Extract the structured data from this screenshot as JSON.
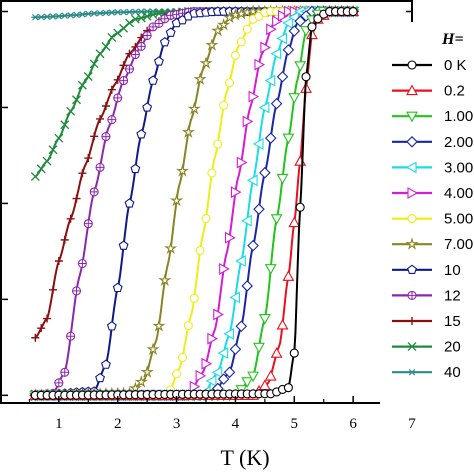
{
  "chart_data": {
    "type": "line",
    "title": "",
    "xlabel": "T (K)",
    "ylabel": "",
    "xlim": [
      0.0,
      7.0
    ],
    "ylim": [
      -0.02,
      1.03
    ],
    "x_ticks": [
      1,
      2,
      3,
      4,
      5,
      6,
      7
    ],
    "x_tick_labels": [
      "1",
      "2",
      "3",
      "4",
      "5",
      "6",
      "7"
    ],
    "legend_title": "H=",
    "legend_position": "right",
    "series": [
      {
        "name": "0 K",
        "color": "#000000",
        "marker": "circle",
        "points": [
          [
            0.6,
            0.0
          ],
          [
            4.6,
            0.004
          ],
          [
            4.9,
            0.02
          ],
          [
            5.0,
            0.11
          ],
          [
            5.1,
            0.49
          ],
          [
            5.2,
            0.83
          ],
          [
            5.3,
            0.96
          ],
          [
            5.45,
            0.99
          ],
          [
            5.6,
            1.0
          ],
          [
            6.0,
            1.0
          ]
        ]
      },
      {
        "name": "0.2",
        "color": "#e8101c",
        "marker": "triangle-up",
        "points": [
          [
            0.6,
            0.0
          ],
          [
            4.3,
            0.0
          ],
          [
            4.55,
            0.03
          ],
          [
            4.75,
            0.13
          ],
          [
            4.9,
            0.31
          ],
          [
            5.0,
            0.45
          ],
          [
            5.1,
            0.61
          ],
          [
            5.2,
            0.8
          ],
          [
            5.3,
            0.94
          ],
          [
            5.4,
            0.98
          ],
          [
            5.6,
            1.0
          ],
          [
            6.0,
            1.0
          ]
        ]
      },
      {
        "name": "1.00",
        "color": "#22c41c",
        "marker": "triangle-down",
        "points": [
          [
            0.6,
            0.0
          ],
          [
            4.0,
            0.0
          ],
          [
            4.3,
            0.05
          ],
          [
            4.5,
            0.2
          ],
          [
            4.7,
            0.46
          ],
          [
            4.9,
            0.67
          ],
          [
            5.05,
            0.82
          ],
          [
            5.2,
            0.95
          ],
          [
            5.35,
            0.99
          ],
          [
            5.5,
            1.0
          ],
          [
            6.0,
            1.0
          ]
        ]
      },
      {
        "name": "2.00",
        "color": "#1a26a8",
        "marker": "diamond",
        "points": [
          [
            0.6,
            0.0
          ],
          [
            3.6,
            0.0
          ],
          [
            3.9,
            0.06
          ],
          [
            4.1,
            0.18
          ],
          [
            4.3,
            0.39
          ],
          [
            4.5,
            0.58
          ],
          [
            4.7,
            0.76
          ],
          [
            4.9,
            0.9
          ],
          [
            5.05,
            0.97
          ],
          [
            5.3,
            1.0
          ],
          [
            6.0,
            1.0
          ]
        ]
      },
      {
        "name": "3.00",
        "color": "#18dde6",
        "marker": "triangle-left",
        "points": [
          [
            0.6,
            0.0
          ],
          [
            3.45,
            0.0
          ],
          [
            3.7,
            0.06
          ],
          [
            3.9,
            0.16
          ],
          [
            4.1,
            0.35
          ],
          [
            4.3,
            0.56
          ],
          [
            4.5,
            0.75
          ],
          [
            4.7,
            0.89
          ],
          [
            4.9,
            0.97
          ],
          [
            5.1,
            1.0
          ],
          [
            6.0,
            1.0
          ]
        ]
      },
      {
        "name": "4.00",
        "color": "#d21cd6",
        "marker": "triangle-right",
        "points": [
          [
            0.6,
            0.0
          ],
          [
            3.2,
            0.0
          ],
          [
            3.45,
            0.06
          ],
          [
            3.65,
            0.17
          ],
          [
            3.85,
            0.37
          ],
          [
            4.05,
            0.57
          ],
          [
            4.25,
            0.75
          ],
          [
            4.45,
            0.89
          ],
          [
            4.65,
            0.97
          ],
          [
            4.9,
            1.0
          ],
          [
            6.0,
            1.0
          ]
        ]
      },
      {
        "name": "5.00",
        "color": "#f0ec1a",
        "marker": "circle",
        "points": [
          [
            0.6,
            0.0
          ],
          [
            2.85,
            0.0
          ],
          [
            3.05,
            0.07
          ],
          [
            3.25,
            0.21
          ],
          [
            3.45,
            0.42
          ],
          [
            3.65,
            0.62
          ],
          [
            3.85,
            0.79
          ],
          [
            4.05,
            0.91
          ],
          [
            4.3,
            0.98
          ],
          [
            4.55,
            1.0
          ],
          [
            6.0,
            1.0
          ]
        ]
      },
      {
        "name": "7.00",
        "color": "#8a8426",
        "marker": "star",
        "points": [
          [
            0.6,
            0.0
          ],
          [
            2.2,
            0.005
          ],
          [
            2.45,
            0.04
          ],
          [
            2.65,
            0.14
          ],
          [
            2.85,
            0.34
          ],
          [
            3.05,
            0.55
          ],
          [
            3.25,
            0.72
          ],
          [
            3.45,
            0.85
          ],
          [
            3.7,
            0.95
          ],
          [
            3.95,
            0.99
          ],
          [
            4.3,
            1.0
          ],
          [
            6.0,
            1.0
          ]
        ]
      },
      {
        "name": "10",
        "color": "#0e1a8a",
        "marker": "pentagon",
        "points": [
          [
            0.6,
            0.0
          ],
          [
            1.6,
            0.01
          ],
          [
            1.8,
            0.08
          ],
          [
            2.0,
            0.28
          ],
          [
            2.2,
            0.5
          ],
          [
            2.4,
            0.68
          ],
          [
            2.6,
            0.82
          ],
          [
            2.8,
            0.92
          ],
          [
            3.0,
            0.97
          ],
          [
            3.3,
            0.995
          ],
          [
            3.7,
            1.0
          ],
          [
            6.0,
            1.0
          ]
        ]
      },
      {
        "name": "12",
        "color": "#8c26ae",
        "marker": "circle-plus",
        "points": [
          [
            0.6,
            0.0
          ],
          [
            0.9,
            0.005
          ],
          [
            1.1,
            0.06
          ],
          [
            1.35,
            0.31
          ],
          [
            1.6,
            0.53
          ],
          [
            1.85,
            0.7
          ],
          [
            2.1,
            0.82
          ],
          [
            2.35,
            0.9
          ],
          [
            2.6,
            0.96
          ],
          [
            2.9,
            0.99
          ],
          [
            3.3,
            1.0
          ],
          [
            6.0,
            1.0
          ]
        ]
      },
      {
        "name": "15",
        "color": "#8a1010",
        "marker": "plus",
        "points": [
          [
            0.6,
            0.15
          ],
          [
            0.8,
            0.2
          ],
          [
            1.0,
            0.35
          ],
          [
            1.2,
            0.46
          ],
          [
            1.45,
            0.6
          ],
          [
            1.7,
            0.72
          ],
          [
            1.95,
            0.81
          ],
          [
            2.2,
            0.89
          ],
          [
            2.5,
            0.95
          ],
          [
            2.8,
            0.985
          ],
          [
            3.2,
            1.0
          ],
          [
            6.0,
            1.0
          ]
        ]
      },
      {
        "name": "20",
        "color": "#1e8a3c",
        "marker": "x",
        "points": [
          [
            0.6,
            0.57
          ],
          [
            0.8,
            0.61
          ],
          [
            1.0,
            0.67
          ],
          [
            1.2,
            0.74
          ],
          [
            1.45,
            0.82
          ],
          [
            1.7,
            0.89
          ],
          [
            1.95,
            0.94
          ],
          [
            2.3,
            0.98
          ],
          [
            2.7,
            0.995
          ],
          [
            3.2,
            1.0
          ],
          [
            6.0,
            1.0
          ]
        ]
      },
      {
        "name": "40",
        "color": "#2e8a8a",
        "marker": "asterisk",
        "points": [
          [
            0.6,
            0.985
          ],
          [
            0.9,
            0.987
          ],
          [
            1.2,
            0.99
          ],
          [
            1.6,
            0.995
          ],
          [
            2.0,
            0.998
          ],
          [
            2.5,
            1.0
          ],
          [
            6.0,
            1.0
          ]
        ]
      }
    ]
  }
}
